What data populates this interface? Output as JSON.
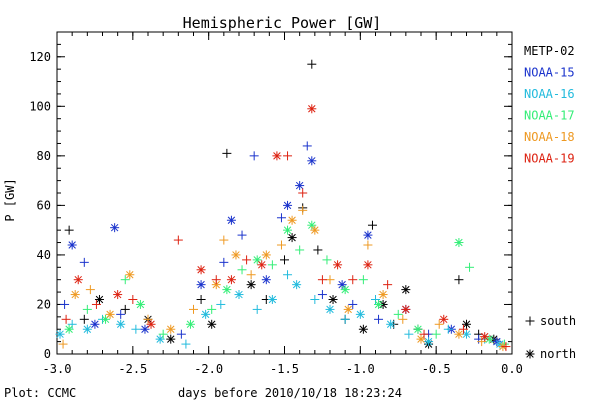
{
  "chart_data": {
    "type": "scatter",
    "title": "Hemispheric Power [GW]",
    "xlabel": "days before 2010/10/18 18:23:24",
    "ylabel": "P [GW]",
    "footer": "Plot: CCMC",
    "xlim": [
      -3.0,
      0.0
    ],
    "ylim": [
      0,
      130
    ],
    "x_ticks": [
      -3.0,
      -2.5,
      -2.0,
      -1.5,
      -1.0,
      -0.5,
      0.0
    ],
    "x_tick_labels": [
      "-3.0",
      "-2.5",
      "-2.0",
      "-1.5",
      "-1.0",
      "-0.5",
      "0.0"
    ],
    "y_ticks": [
      0,
      20,
      40,
      60,
      80,
      100,
      120
    ],
    "y_tick_labels": [
      "0",
      "20",
      "40",
      "60",
      "80",
      "100",
      "120"
    ],
    "grid": false,
    "legend_position": "right",
    "marker_legend": [
      {
        "symbol": "+",
        "label": "south"
      },
      {
        "symbol": "*",
        "label": "north"
      }
    ],
    "series": [
      {
        "name": "METP-02",
        "color": "#000000",
        "values": [
          [
            -2.92,
            50,
            "s"
          ],
          [
            -2.82,
            14,
            "s"
          ],
          [
            -2.72,
            22,
            "n"
          ],
          [
            -2.55,
            18,
            "s"
          ],
          [
            -2.4,
            14,
            "n"
          ],
          [
            -2.25,
            6,
            "n"
          ],
          [
            -2.05,
            22,
            "s"
          ],
          [
            -1.98,
            12,
            "n"
          ],
          [
            -1.88,
            81,
            "s"
          ],
          [
            -1.72,
            28,
            "n"
          ],
          [
            -1.62,
            22,
            "s"
          ],
          [
            -1.5,
            38,
            "s"
          ],
          [
            -1.45,
            47,
            "n"
          ],
          [
            -1.38,
            59,
            "s"
          ],
          [
            -1.32,
            117,
            "s"
          ],
          [
            -1.28,
            42,
            "s"
          ],
          [
            -1.18,
            22,
            "n"
          ],
          [
            -1.1,
            14,
            "s"
          ],
          [
            -0.98,
            10,
            "n"
          ],
          [
            -0.92,
            52,
            "s"
          ],
          [
            -0.85,
            20,
            "n"
          ],
          [
            -0.78,
            12,
            "s"
          ],
          [
            -0.7,
            26,
            "n"
          ],
          [
            -0.62,
            10,
            "s"
          ],
          [
            -0.55,
            4,
            "n"
          ],
          [
            -0.35,
            30,
            "s"
          ],
          [
            -0.3,
            12,
            "n"
          ],
          [
            -0.22,
            8,
            "s"
          ],
          [
            -0.12,
            6,
            "n"
          ]
        ]
      },
      {
        "name": "NOAA-15",
        "color": "#1a33cc",
        "values": [
          [
            -2.95,
            20,
            "s"
          ],
          [
            -2.9,
            44,
            "n"
          ],
          [
            -2.82,
            37,
            "s"
          ],
          [
            -2.75,
            12,
            "n"
          ],
          [
            -2.62,
            51,
            "n"
          ],
          [
            -2.58,
            16,
            "s"
          ],
          [
            -2.42,
            10,
            "n"
          ],
          [
            -2.18,
            8,
            "s"
          ],
          [
            -2.05,
            28,
            "n"
          ],
          [
            -1.9,
            37,
            "s"
          ],
          [
            -1.85,
            54,
            "n"
          ],
          [
            -1.78,
            48,
            "s"
          ],
          [
            -1.7,
            80,
            "s"
          ],
          [
            -1.62,
            30,
            "n"
          ],
          [
            -1.52,
            55,
            "s"
          ],
          [
            -1.48,
            60,
            "n"
          ],
          [
            -1.4,
            68,
            "n"
          ],
          [
            -1.35,
            84,
            "s"
          ],
          [
            -1.32,
            78,
            "n"
          ],
          [
            -1.25,
            24,
            "s"
          ],
          [
            -1.12,
            28,
            "n"
          ],
          [
            -1.05,
            20,
            "s"
          ],
          [
            -0.95,
            48,
            "n"
          ],
          [
            -0.88,
            14,
            "s"
          ],
          [
            -0.7,
            18,
            "n"
          ],
          [
            -0.55,
            8,
            "s"
          ],
          [
            -0.4,
            10,
            "n"
          ],
          [
            -0.22,
            6,
            "s"
          ],
          [
            -0.1,
            5,
            "n"
          ]
        ]
      },
      {
        "name": "NOAA-16",
        "color": "#22bbdd",
        "values": [
          [
            -2.98,
            8,
            "n"
          ],
          [
            -2.9,
            12,
            "s"
          ],
          [
            -2.8,
            10,
            "n"
          ],
          [
            -2.7,
            14,
            "s"
          ],
          [
            -2.58,
            12,
            "n"
          ],
          [
            -2.48,
            10,
            "s"
          ],
          [
            -2.32,
            6,
            "n"
          ],
          [
            -2.15,
            4,
            "s"
          ],
          [
            -2.02,
            16,
            "n"
          ],
          [
            -1.92,
            20,
            "s"
          ],
          [
            -1.8,
            24,
            "n"
          ],
          [
            -1.68,
            18,
            "s"
          ],
          [
            -1.58,
            22,
            "n"
          ],
          [
            -1.48,
            32,
            "s"
          ],
          [
            -1.42,
            28,
            "n"
          ],
          [
            -1.3,
            22,
            "s"
          ],
          [
            -1.2,
            18,
            "n"
          ],
          [
            -1.1,
            14,
            "s"
          ],
          [
            -1.0,
            16,
            "n"
          ],
          [
            -0.9,
            22,
            "s"
          ],
          [
            -0.8,
            12,
            "n"
          ],
          [
            -0.68,
            8,
            "s"
          ],
          [
            -0.55,
            5,
            "n"
          ],
          [
            -0.42,
            10,
            "s"
          ],
          [
            -0.3,
            8,
            "n"
          ],
          [
            -0.18,
            6,
            "s"
          ],
          [
            -0.08,
            4,
            "n"
          ]
        ]
      },
      {
        "name": "NOAA-17",
        "color": "#33ee77",
        "values": [
          [
            -2.92,
            10,
            "n"
          ],
          [
            -2.8,
            18,
            "s"
          ],
          [
            -2.68,
            14,
            "n"
          ],
          [
            -2.55,
            30,
            "s"
          ],
          [
            -2.45,
            20,
            "n"
          ],
          [
            -2.3,
            8,
            "s"
          ],
          [
            -2.12,
            12,
            "n"
          ],
          [
            -1.98,
            18,
            "s"
          ],
          [
            -1.88,
            26,
            "n"
          ],
          [
            -1.78,
            34,
            "s"
          ],
          [
            -1.68,
            38,
            "n"
          ],
          [
            -1.58,
            36,
            "s"
          ],
          [
            -1.48,
            50,
            "n"
          ],
          [
            -1.4,
            42,
            "s"
          ],
          [
            -1.32,
            52,
            "n"
          ],
          [
            -1.22,
            38,
            "s"
          ],
          [
            -1.1,
            26,
            "n"
          ],
          [
            -0.98,
            30,
            "s"
          ],
          [
            -0.88,
            20,
            "n"
          ],
          [
            -0.75,
            16,
            "s"
          ],
          [
            -0.62,
            10,
            "n"
          ],
          [
            -0.5,
            8,
            "s"
          ],
          [
            -0.35,
            45,
            "n"
          ],
          [
            -0.28,
            35,
            "s"
          ],
          [
            -0.15,
            6,
            "n"
          ],
          [
            -0.05,
            4,
            "s"
          ]
        ]
      },
      {
        "name": "NOAA-18",
        "color": "#ee9922",
        "values": [
          [
            -2.96,
            4,
            "s"
          ],
          [
            -2.88,
            24,
            "n"
          ],
          [
            -2.78,
            26,
            "s"
          ],
          [
            -2.65,
            16,
            "n"
          ],
          [
            -2.52,
            32,
            "n"
          ],
          [
            -2.4,
            14,
            "s"
          ],
          [
            -2.25,
            10,
            "n"
          ],
          [
            -2.1,
            18,
            "s"
          ],
          [
            -1.95,
            28,
            "n"
          ],
          [
            -1.9,
            46,
            "s"
          ],
          [
            -1.82,
            40,
            "n"
          ],
          [
            -1.72,
            32,
            "s"
          ],
          [
            -1.62,
            40,
            "n"
          ],
          [
            -1.52,
            44,
            "s"
          ],
          [
            -1.45,
            54,
            "n"
          ],
          [
            -1.38,
            58,
            "s"
          ],
          [
            -1.3,
            50,
            "n"
          ],
          [
            -1.2,
            30,
            "s"
          ],
          [
            -1.08,
            18,
            "n"
          ],
          [
            -0.95,
            44,
            "s"
          ],
          [
            -0.85,
            24,
            "n"
          ],
          [
            -0.72,
            14,
            "s"
          ],
          [
            -0.6,
            6,
            "n"
          ],
          [
            -0.48,
            12,
            "s"
          ],
          [
            -0.35,
            8,
            "n"
          ],
          [
            -0.2,
            5,
            "s"
          ],
          [
            -0.06,
            3,
            "n"
          ]
        ]
      },
      {
        "name": "NOAA-19",
        "color": "#dd2211",
        "values": [
          [
            -2.94,
            14,
            "s"
          ],
          [
            -2.86,
            30,
            "n"
          ],
          [
            -2.74,
            20,
            "s"
          ],
          [
            -2.6,
            24,
            "n"
          ],
          [
            -2.5,
            22,
            "s"
          ],
          [
            -2.38,
            12,
            "n"
          ],
          [
            -2.2,
            46,
            "s"
          ],
          [
            -2.05,
            34,
            "n"
          ],
          [
            -1.95,
            30,
            "s"
          ],
          [
            -1.85,
            30,
            "n"
          ],
          [
            -1.75,
            38,
            "s"
          ],
          [
            -1.65,
            36,
            "n"
          ],
          [
            -1.55,
            80,
            "n"
          ],
          [
            -1.48,
            80,
            "s"
          ],
          [
            -1.38,
            65,
            "s"
          ],
          [
            -1.32,
            99,
            "n"
          ],
          [
            -1.25,
            30,
            "s"
          ],
          [
            -1.15,
            36,
            "n"
          ],
          [
            -1.05,
            30,
            "s"
          ],
          [
            -0.95,
            36,
            "n"
          ],
          [
            -0.82,
            28,
            "s"
          ],
          [
            -0.7,
            18,
            "n"
          ],
          [
            -0.58,
            8,
            "s"
          ],
          [
            -0.45,
            14,
            "n"
          ],
          [
            -0.32,
            10,
            "s"
          ],
          [
            -0.18,
            7,
            "n"
          ],
          [
            -0.04,
            3,
            "s"
          ]
        ]
      }
    ]
  }
}
